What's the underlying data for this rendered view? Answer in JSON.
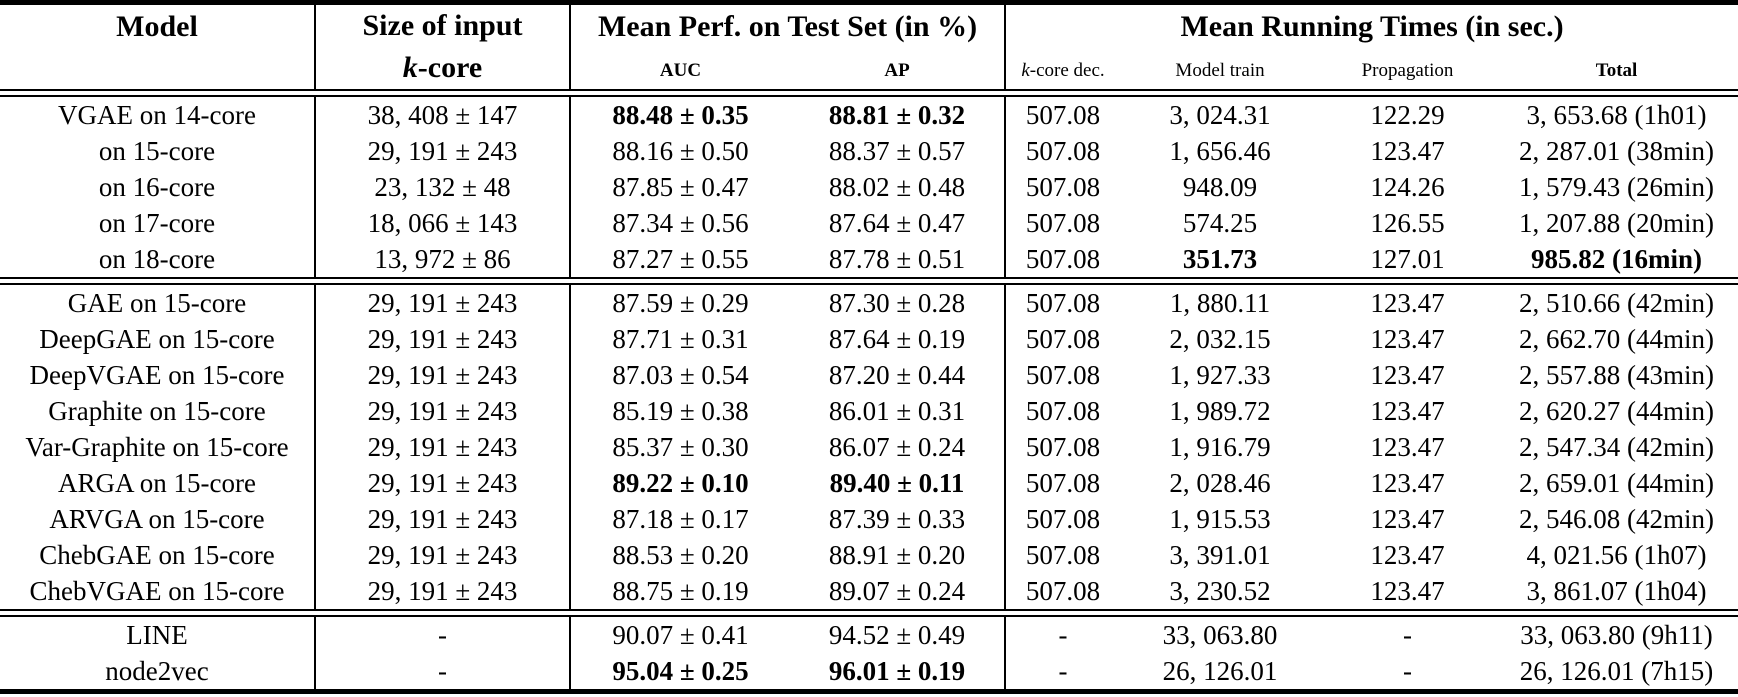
{
  "table": {
    "header": {
      "model": "Model",
      "size_line1": "Size of input",
      "size_k": "k",
      "size_core": "-core",
      "group_perf": "Mean Perf. on Test Set (in %)",
      "group_times": "Mean Running Times (in sec.)",
      "sub_auc": "AUC",
      "sub_ap": "AP",
      "sub_kdec_k": "k",
      "sub_kdec_rest": "-core dec.",
      "sub_train": "Model train",
      "sub_prop": "Propagation",
      "sub_total": "Total"
    },
    "sections": [
      {
        "rows": [
          {
            "model": "VGAE on 14-core",
            "size": "38, 408 ± 147",
            "auc": "88.48 ± 0.35",
            "ap": "88.81 ± 0.32",
            "kdec": "507.08",
            "train": "3, 024.31",
            "prop": "122.29",
            "total": "3, 653.68 (1h01)",
            "bold": [
              "auc",
              "ap"
            ]
          },
          {
            "model": "on 15-core",
            "size": "29, 191 ± 243",
            "auc": "88.16 ± 0.50",
            "ap": "88.37 ± 0.57",
            "kdec": "507.08",
            "train": "1, 656.46",
            "prop": "123.47",
            "total": "2, 287.01 (38min)",
            "bold": []
          },
          {
            "model": "on 16-core",
            "size": "23, 132 ± 48",
            "auc": "87.85 ± 0.47",
            "ap": "88.02 ± 0.48",
            "kdec": "507.08",
            "train": "948.09",
            "prop": "124.26",
            "total": "1, 579.43 (26min)",
            "bold": []
          },
          {
            "model": "on 17-core",
            "size": "18, 066 ± 143",
            "auc": "87.34 ± 0.56",
            "ap": "87.64 ± 0.47",
            "kdec": "507.08",
            "train": "574.25",
            "prop": "126.55",
            "total": "1, 207.88 (20min)",
            "bold": []
          },
          {
            "model": "on 18-core",
            "size": "13, 972 ± 86",
            "auc": "87.27 ± 0.55",
            "ap": "87.78 ± 0.51",
            "kdec": "507.08",
            "train": "351.73",
            "prop": "127.01",
            "total": "985.82 (16min)",
            "bold": [
              "train",
              "total"
            ]
          }
        ]
      },
      {
        "rows": [
          {
            "model": "GAE on 15-core",
            "size": "29, 191 ± 243",
            "auc": "87.59 ± 0.29",
            "ap": "87.30 ± 0.28",
            "kdec": "507.08",
            "train": "1, 880.11",
            "prop": "123.47",
            "total": "2, 510.66 (42min)",
            "bold": []
          },
          {
            "model": "DeepGAE on 15-core",
            "size": "29, 191 ± 243",
            "auc": "87.71 ± 0.31",
            "ap": "87.64 ± 0.19",
            "kdec": "507.08",
            "train": "2, 032.15",
            "prop": "123.47",
            "total": "2, 662.70 (44min)",
            "bold": []
          },
          {
            "model": "DeepVGAE on 15-core",
            "size": "29, 191 ± 243",
            "auc": "87.03 ± 0.54",
            "ap": "87.20 ± 0.44",
            "kdec": "507.08",
            "train": "1, 927.33",
            "prop": "123.47",
            "total": "2, 557.88 (43min)",
            "bold": []
          },
          {
            "model": "Graphite on 15-core",
            "size": "29, 191 ± 243",
            "auc": "85.19 ± 0.38",
            "ap": "86.01 ± 0.31",
            "kdec": "507.08",
            "train": "1, 989.72",
            "prop": "123.47",
            "total": "2, 620.27 (44min)",
            "bold": []
          },
          {
            "model": "Var-Graphite on 15-core",
            "size": "29, 191 ± 243",
            "auc": "85.37 ± 0.30",
            "ap": "86.07 ± 0.24",
            "kdec": "507.08",
            "train": "1, 916.79",
            "prop": "123.47",
            "total": "2, 547.34 (42min)",
            "bold": []
          },
          {
            "model": "ARGA on 15-core",
            "size": "29, 191 ± 243",
            "auc": "89.22 ± 0.10",
            "ap": "89.40 ± 0.11",
            "kdec": "507.08",
            "train": "2, 028.46",
            "prop": "123.47",
            "total": "2, 659.01 (44min)",
            "bold": [
              "auc",
              "ap"
            ]
          },
          {
            "model": "ARVGA on 15-core",
            "size": "29, 191 ± 243",
            "auc": "87.18 ± 0.17",
            "ap": "87.39 ± 0.33",
            "kdec": "507.08",
            "train": "1, 915.53",
            "prop": "123.47",
            "total": "2, 546.08 (42min)",
            "bold": []
          },
          {
            "model": "ChebGAE on 15-core",
            "size": "29, 191 ± 243",
            "auc": "88.53 ± 0.20",
            "ap": "88.91 ± 0.20",
            "kdec": "507.08",
            "train": "3, 391.01",
            "prop": "123.47",
            "total": "4, 021.56 (1h07)",
            "bold": []
          },
          {
            "model": "ChebVGAE on 15-core",
            "size": "29, 191 ± 243",
            "auc": "88.75 ± 0.19",
            "ap": "89.07 ± 0.24",
            "kdec": "507.08",
            "train": "3, 230.52",
            "prop": "123.47",
            "total": "3, 861.07 (1h04)",
            "bold": []
          }
        ]
      },
      {
        "rows": [
          {
            "model": "LINE",
            "size": "-",
            "auc": "90.07 ± 0.41",
            "ap": "94.52 ± 0.49",
            "kdec": "-",
            "train": "33, 063.80",
            "prop": "-",
            "total": "33, 063.80 (9h11)",
            "bold": []
          },
          {
            "model": "node2vec",
            "size": "-",
            "auc": "95.04 ± 0.25",
            "ap": "96.01 ± 0.19",
            "kdec": "-",
            "train": "26, 126.01",
            "prop": "-",
            "total": "26, 126.01 (7h15)",
            "bold": [
              "auc",
              "ap"
            ]
          }
        ]
      }
    ]
  }
}
